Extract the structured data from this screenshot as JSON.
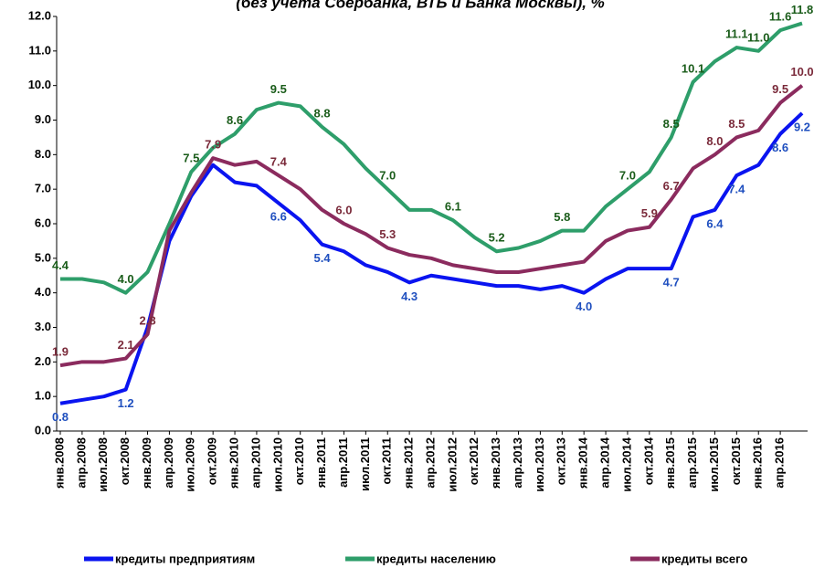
{
  "chart_data": {
    "type": "line",
    "title": "(без учета Сбербанка, ВТБ и Банка Москвы), %",
    "categories": [
      "янв.2008",
      "апр.2008",
      "июл.2008",
      "окт.2008",
      "янв.2009",
      "апр.2009",
      "июл.2009",
      "окт.2009",
      "янв.2010",
      "апр.2010",
      "июл.2010",
      "окт.2010",
      "янв.2011",
      "апр.2011",
      "июл.2011",
      "окт.2011",
      "янв.2012",
      "апр.2012",
      "июл.2012",
      "окт.2012",
      "янв.2013",
      "апр.2013",
      "июл.2013",
      "окт.2013",
      "янв.2014",
      "апр.2014",
      "июл.2014",
      "окт.2014",
      "янв.2015",
      "апр.2015",
      "июл.2015",
      "окт.2015",
      "янв.2016",
      "апр.2016",
      null
    ],
    "series": [
      {
        "name": "кредиты предприятиям",
        "color": "#0a14f0",
        "label_color": "#1f4fbf",
        "values": [
          0.8,
          0.9,
          1.0,
          1.2,
          3.0,
          5.5,
          6.8,
          7.7,
          7.2,
          7.1,
          6.6,
          6.1,
          5.4,
          5.2,
          4.8,
          4.6,
          4.3,
          4.5,
          4.4,
          4.3,
          4.2,
          4.2,
          4.1,
          4.2,
          4.0,
          4.4,
          4.7,
          4.7,
          4.7,
          6.2,
          6.4,
          7.4,
          7.7,
          8.6,
          9.2
        ],
        "value_labels": [
          "0.8",
          null,
          null,
          "1.2",
          null,
          null,
          null,
          null,
          null,
          null,
          "6.6",
          null,
          "5.4",
          null,
          null,
          null,
          "4.3",
          null,
          null,
          null,
          null,
          null,
          null,
          null,
          "4.0",
          null,
          null,
          null,
          "4.7",
          null,
          "6.4",
          "7.4",
          null,
          "8.6",
          "9.2"
        ]
      },
      {
        "name": "кредиты населению",
        "color": "#2e9e6a",
        "label_color": "#1a5c1a",
        "values": [
          4.4,
          4.4,
          4.3,
          4.0,
          4.6,
          6.0,
          7.5,
          8.2,
          8.6,
          9.3,
          9.5,
          9.4,
          8.8,
          8.3,
          7.6,
          7.0,
          6.4,
          6.4,
          6.1,
          5.6,
          5.2,
          5.3,
          5.5,
          5.8,
          5.8,
          6.5,
          7.0,
          7.5,
          8.5,
          10.1,
          10.7,
          11.1,
          11.0,
          11.6,
          11.8
        ],
        "value_labels": [
          "4.4",
          null,
          null,
          "4.0",
          null,
          null,
          "7.5",
          null,
          "8.6",
          null,
          "9.5",
          null,
          "8.8",
          null,
          null,
          "7.0",
          null,
          null,
          "6.1",
          null,
          "5.2",
          null,
          null,
          "5.8",
          null,
          null,
          "7.0",
          null,
          "8.5",
          "10.1",
          null,
          "11.1",
          "11.0",
          "11.6",
          "11.8"
        ]
      },
      {
        "name": "кредиты всего",
        "color": "#8b2b5e",
        "label_color": "#7a2a3a",
        "values": [
          1.9,
          2.0,
          2.0,
          2.1,
          2.8,
          5.8,
          6.9,
          7.9,
          7.7,
          7.8,
          7.4,
          7.0,
          6.4,
          6.0,
          5.7,
          5.3,
          5.1,
          5.0,
          4.8,
          4.7,
          4.6,
          4.6,
          4.7,
          4.8,
          4.9,
          5.5,
          5.8,
          5.9,
          6.7,
          7.6,
          8.0,
          8.5,
          8.7,
          9.5,
          10.0
        ],
        "value_labels": [
          "1.9",
          null,
          null,
          "2.1",
          "2.8",
          null,
          null,
          "7.9",
          null,
          null,
          "7.4",
          null,
          null,
          "6.0",
          null,
          "5.3",
          null,
          null,
          null,
          null,
          null,
          null,
          null,
          null,
          null,
          null,
          null,
          "5.9",
          "6.7",
          null,
          "8.0",
          "8.5",
          null,
          "9.5",
          "10.0"
        ]
      }
    ],
    "ylim": [
      0,
      12
    ],
    "yticks": [
      {
        "value": 0,
        "label": "0.0"
      },
      {
        "value": 1,
        "label": "1.0"
      },
      {
        "value": 2,
        "label": "2.0"
      },
      {
        "value": 3,
        "label": "3.0"
      },
      {
        "value": 4,
        "label": "4.0"
      },
      {
        "value": 5,
        "label": "5.0"
      },
      {
        "value": 6,
        "label": "6.0"
      },
      {
        "value": 7,
        "label": "7.0"
      },
      {
        "value": 8,
        "label": "8.0"
      },
      {
        "value": 9,
        "label": "9.0"
      },
      {
        "value": 10,
        "label": "10.0"
      },
      {
        "value": 11,
        "label": "11.0"
      },
      {
        "value": 12,
        "label": "12.0"
      }
    ],
    "grid": false
  }
}
